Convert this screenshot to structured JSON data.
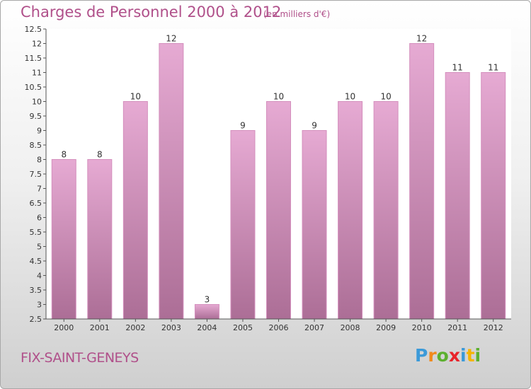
{
  "title": "Charges de Personnel 2000 à 2012",
  "subtitle": "(en milliers d'€)",
  "commune": "FIX-SAINT-GENEYS",
  "logo": {
    "letters": [
      "P",
      "r",
      "o",
      "x",
      "i",
      "t",
      "i"
    ],
    "colors": [
      "#3b9ad9",
      "#f08a1c",
      "#5cb02f",
      "#e8232a",
      "#3b9ad9",
      "#f5b400",
      "#5cb02f"
    ]
  },
  "colors": {
    "title": "#b0508a",
    "bar_top": "#e6aad3",
    "bar_bottom": "#ac6e96"
  },
  "chart_data": {
    "type": "bar",
    "categories": [
      "2000",
      "2001",
      "2002",
      "2003",
      "2004",
      "2005",
      "2006",
      "2007",
      "2008",
      "2009",
      "2010",
      "2011",
      "2012"
    ],
    "values": [
      8,
      8,
      10,
      12,
      3,
      9,
      10,
      9,
      10,
      10,
      12,
      11,
      11
    ],
    "data_labels": [
      "8",
      "8",
      "10",
      "12",
      "3",
      "9",
      "10",
      "9",
      "10",
      "10",
      "12",
      "11",
      "11"
    ],
    "ylim": [
      2.5,
      12.5
    ],
    "yticks": [
      "2.5",
      "3",
      "3.5",
      "4",
      "4.5",
      "5",
      "5.5",
      "6",
      "6.5",
      "7",
      "7.5",
      "8",
      "8.5",
      "9",
      "9.5",
      "10",
      "10.5",
      "11",
      "11.5",
      "12",
      "12.5"
    ],
    "grid": false,
    "xlabel": "",
    "ylabel": ""
  }
}
